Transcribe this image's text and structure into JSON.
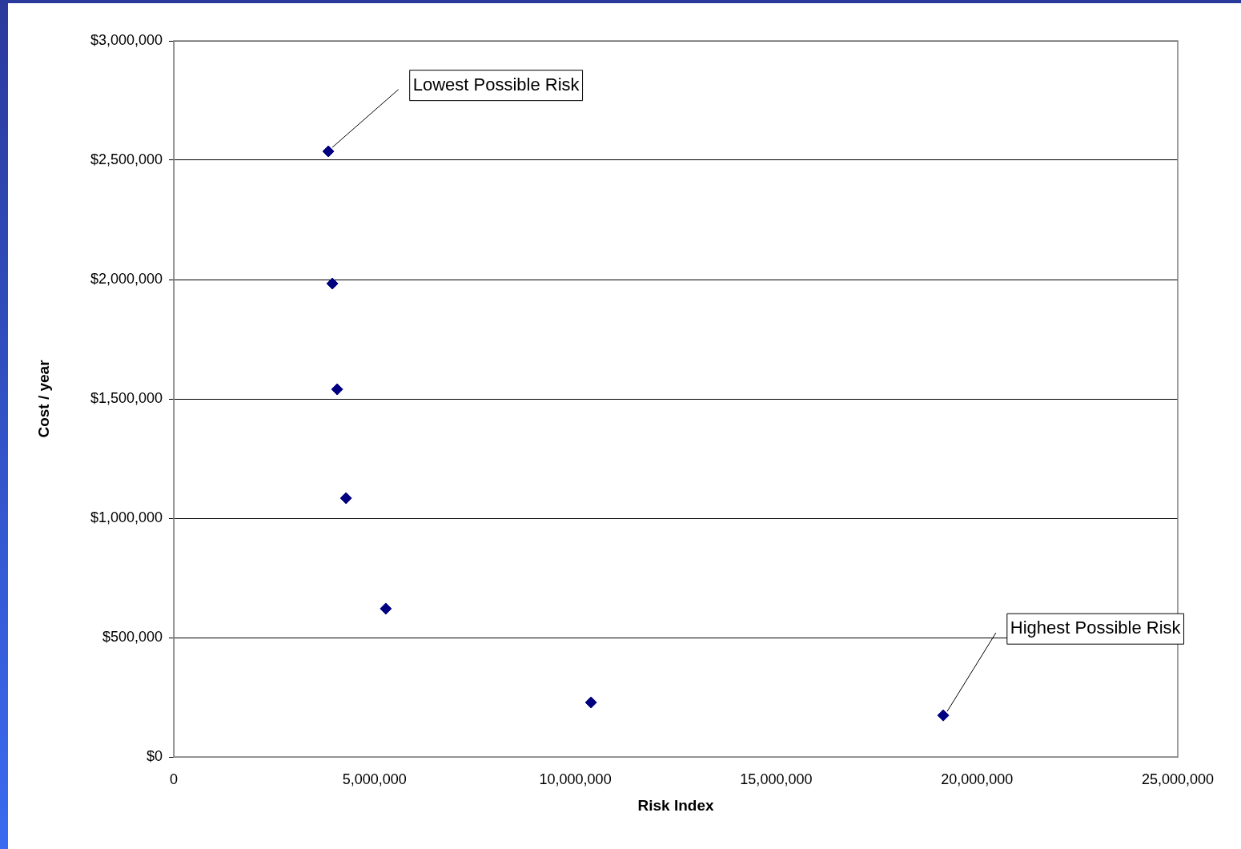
{
  "chart_data": {
    "type": "scatter",
    "xlabel": "Risk Index",
    "ylabel": "Cost / year",
    "x": [
      3850000,
      3950000,
      4070000,
      4290000,
      5280000,
      10390000,
      19160000
    ],
    "series": [
      {
        "color": "#000080",
        "values": [
          2537000,
          1983000,
          1540000,
          1084000,
          621000,
          228000,
          174000
        ]
      }
    ],
    "xlim": [
      0,
      25000000
    ],
    "xticks": [
      {
        "value": 0,
        "label": "0"
      },
      {
        "value": 5000000,
        "label": "5,000,000"
      },
      {
        "value": 10000000,
        "label": "10,000,000"
      },
      {
        "value": 15000000,
        "label": "15,000,000"
      },
      {
        "value": 20000000,
        "label": "20,000,000"
      },
      {
        "value": 25000000,
        "label": "25,000,000"
      }
    ],
    "ylim": [
      0,
      3000000
    ],
    "yticks": [
      {
        "value": 0,
        "label": "$0"
      },
      {
        "value": 500000,
        "label": "$500,000"
      },
      {
        "value": 1000000,
        "label": "$1,000,000"
      },
      {
        "value": 1500000,
        "label": "$1,500,000"
      },
      {
        "value": 2000000,
        "label": "$2,000,000"
      },
      {
        "value": 2500000,
        "label": "$2,500,000"
      },
      {
        "value": 3000000,
        "label": "$3,000,000"
      }
    ],
    "grid": "y",
    "legend": false,
    "marker": "diamond",
    "annotations": [
      {
        "text": "Lowest Possible Risk",
        "x": 3850000,
        "y": 2537000
      },
      {
        "text": "Highest Possible Risk",
        "x": 19160000,
        "y": 174000
      }
    ]
  }
}
